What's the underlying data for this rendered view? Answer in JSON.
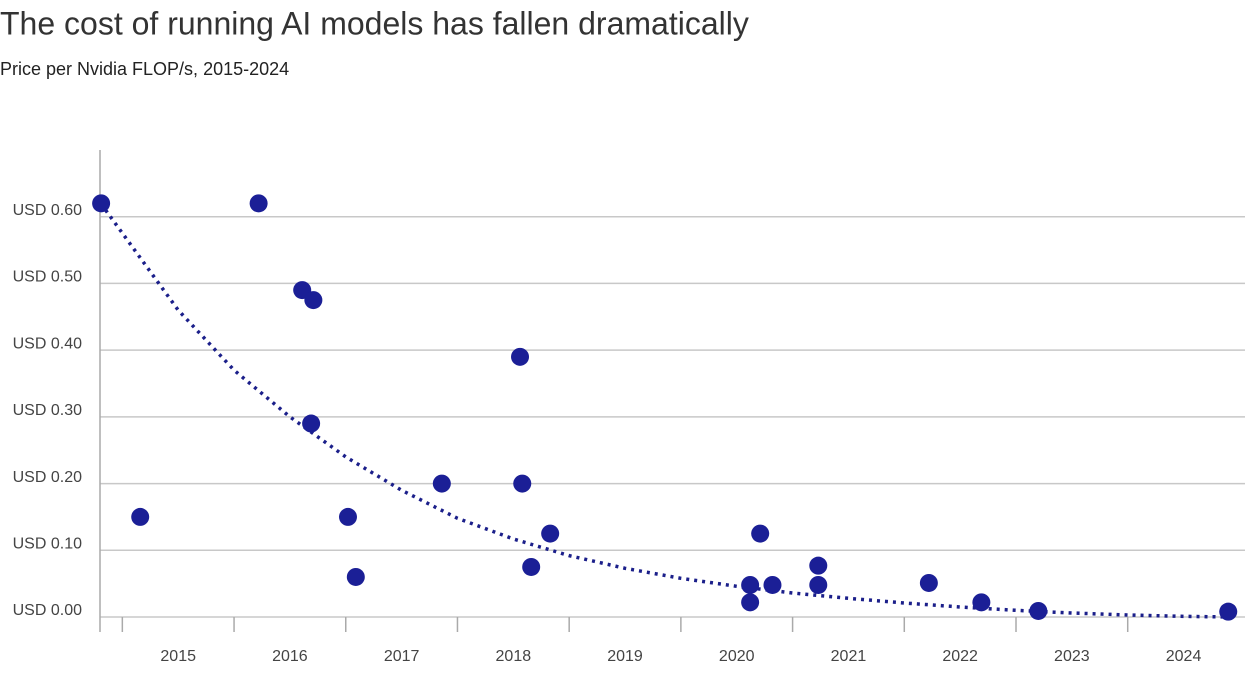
{
  "chart_data": {
    "type": "scatter",
    "title": "The cost of running AI models has fallen dramatically",
    "subtitle": "Price per Nvidia FLOP/s, 2015-2024",
    "series": [
      {
        "mode": "markers",
        "color": "#1b1f96",
        "x": [
          2014.81,
          2015.16,
          2016.22,
          2016.61,
          2016.71,
          2016.69,
          2017.02,
          2017.09,
          2017.86,
          2018.56,
          2018.58,
          2018.66,
          2018.83,
          2020.62,
          2020.62,
          2020.71,
          2020.82,
          2021.23,
          2021.23,
          2022.22,
          2022.69,
          2023.2,
          2024.9
        ],
        "values": [
          0.62,
          0.15,
          0.62,
          0.49,
          0.475,
          0.29,
          0.15,
          0.06,
          0.2,
          0.39,
          0.2,
          0.075,
          0.125,
          0.048,
          0.022,
          0.125,
          0.048,
          0.077,
          0.048,
          0.051,
          0.022,
          0.009,
          0.008
        ]
      },
      {
        "mode": "dotted-line",
        "color": "#1b1f8a",
        "x": [
          2014.85,
          2015.5,
          2016,
          2016.5,
          2017,
          2017.5,
          2018,
          2018.5,
          2019,
          2019.5,
          2020,
          2020.5,
          2021,
          2021.5,
          2022,
          2022.5,
          2023,
          2023.5,
          2024,
          2024.5,
          2024.9
        ],
        "values": [
          0.61,
          0.46,
          0.37,
          0.3,
          0.24,
          0.19,
          0.148,
          0.117,
          0.092,
          0.073,
          0.058,
          0.046,
          0.036,
          0.028,
          0.021,
          0.015,
          0.01,
          0.006,
          0.003,
          0.001,
          0
        ]
      }
    ],
    "xlim": [
      2014.8,
      2025.05
    ],
    "xticks": [
      {
        "value": 2015,
        "label": "2015"
      },
      {
        "value": 2016,
        "label": "2016"
      },
      {
        "value": 2017,
        "label": "2017"
      },
      {
        "value": 2018,
        "label": "2018"
      },
      {
        "value": 2019,
        "label": "2019"
      },
      {
        "value": 2020,
        "label": "2020"
      },
      {
        "value": 2021,
        "label": "2021"
      },
      {
        "value": 2022,
        "label": "2022"
      },
      {
        "value": 2023,
        "label": "2023"
      },
      {
        "value": 2024,
        "label": "2024"
      }
    ],
    "ylim": [
      0,
      0.7
    ],
    "yticks": [
      {
        "value": 0,
        "label": "USD 0.00"
      },
      {
        "value": 0.1,
        "label": "USD 0.10"
      },
      {
        "value": 0.2,
        "label": "USD 0.20"
      },
      {
        "value": 0.3,
        "label": "USD 0.30"
      },
      {
        "value": 0.4,
        "label": "USD 0.40"
      },
      {
        "value": 0.5,
        "label": "USD 0.50"
      },
      {
        "value": 0.6,
        "label": "USD 0.60"
      }
    ],
    "grid": true
  }
}
